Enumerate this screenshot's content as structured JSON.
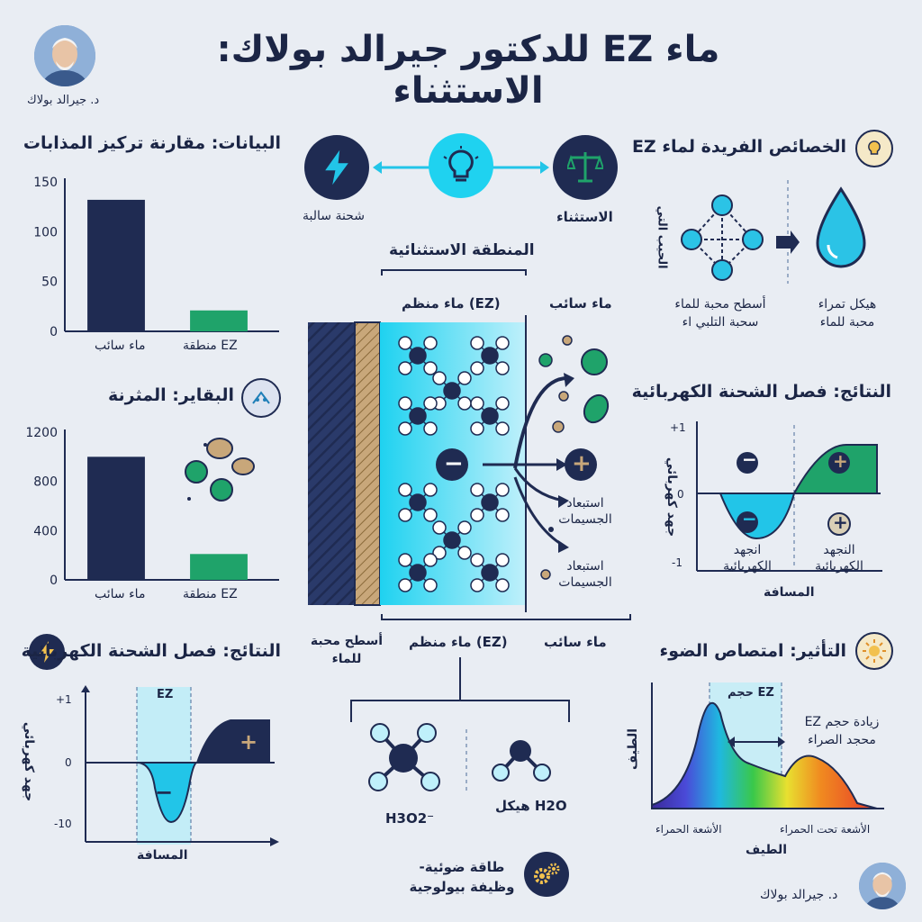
{
  "header": {
    "title": "ماء EZ للدكتور جيرالد بولاك: الاستثناء",
    "author_caption": "د. جيرالد بولاك"
  },
  "center_top": {
    "left_icon_label": "شحنة سالبة",
    "right_icon_label": "الاستثناء",
    "zone_heading": "المنطقة الاستثنائية",
    "ordered_water_label": "ماء منظم (EZ)",
    "bulk_water_label": "ماء سائب",
    "exclusion_1": "استبعاد الجسيمات",
    "exclusion_2": "استبعاد الجسيمات",
    "bottom_surface_label": "أسطح محبة للماء",
    "bottom_ez_label": "ماء منظم (EZ)",
    "bottom_bulk_label": "ماء سائب",
    "h3o2_label": "H3O2⁻",
    "h2o_label": "هيكل H2O",
    "energy_label": "طاقة ضوئية- وظيفة بيولوجية",
    "minus_symbol": "−",
    "plus_symbol": "+"
  },
  "chart_solutes": {
    "heading": "البيانات: مقارنة تركيز المذابات",
    "categories": [
      "ماء سائب",
      "منطقة EZ"
    ],
    "tick_labels": [
      "150",
      "100",
      "50",
      "0"
    ]
  },
  "chart_bacteria": {
    "heading": "البقاير: المثرنة",
    "categories": [
      "ماء سائب",
      "منطقة EZ"
    ],
    "tick_labels": [
      "1200",
      "800",
      "400",
      "0"
    ]
  },
  "charge_left": {
    "heading": "النتائج: فصل الشحنة الكهربائية",
    "ez_label": "EZ",
    "ylabel": "جهد كهربائي",
    "xlabel": "المسافة",
    "tick_labels": [
      "+1",
      "0",
      "-10"
    ],
    "minus_symbol": "−",
    "plus_symbol": "+"
  },
  "unique_props": {
    "heading": "الخصائص الفريدة لماء EZ",
    "side_label": "الحيب التي",
    "left_caption": "أسطح محبة للماء سحبة التلبي اء",
    "right_caption": "هيكل تمراء محبة للماء"
  },
  "charge_right": {
    "heading": "النتائج: فصل الشحنة الكهربائية",
    "ylabel": "جهد كهربائي",
    "xlabel": "المسافة",
    "tick_labels": [
      "+1",
      "0",
      "-1"
    ],
    "left_region_label": "انجهد الكهربائية",
    "right_region_label": "النجهد الكهربائية",
    "minus_symbol": "−",
    "plus_symbol": "+"
  },
  "light": {
    "heading": "التأثير: امتصاص الضوء",
    "ez_band_label": "حجم EZ",
    "increase_label": "زيادة حجم EZ محجد الصراء",
    "ylabel": "الطيف",
    "xlabel": "الطيف",
    "left_axis_label": "الأشعة الحمراء",
    "right_axis_label": "الأشعة تحت الحمراء"
  },
  "footer": {
    "author_caption": "د. جيرالد بولاك"
  },
  "chart_data": [
    {
      "type": "bar",
      "title": "البيانات: مقارنة تركيز المذابات",
      "categories": [
        "ماء سائب",
        "منطقة EZ"
      ],
      "values": [
        132,
        21
      ],
      "ylim": [
        0,
        150
      ],
      "yticks": [
        0,
        50,
        100,
        150
      ],
      "colors": [
        "#1f2b52",
        "#1fa36a"
      ],
      "grid": false
    },
    {
      "type": "bar",
      "title": "البقاير: المثرنة",
      "categories": [
        "ماء سائب",
        "منطقة EZ"
      ],
      "values": [
        1000,
        210
      ],
      "ylim": [
        0,
        1200
      ],
      "yticks": [
        0,
        400,
        800,
        1200
      ],
      "colors": [
        "#1f2b52",
        "#1fa36a"
      ],
      "grid": false
    }
  ]
}
